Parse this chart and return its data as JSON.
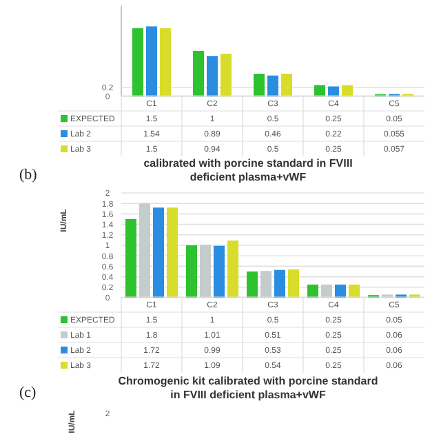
{
  "chart_data": [
    {
      "type": "bar",
      "categories": [
        "C1",
        "C2",
        "C3",
        "C4",
        "C5"
      ],
      "ylim": [
        0,
        2
      ],
      "yticks": [
        0,
        0.2
      ],
      "grid": "y",
      "legend": "bottom",
      "data_labels": true,
      "series": [
        {
          "name": "EXPECTED",
          "color": "#2ec22e",
          "values": [
            1.5,
            1,
            0.5,
            0.25,
            0.05
          ]
        },
        {
          "name": "Lab 2",
          "color": "#2b8de0",
          "values": [
            1.54,
            0.89,
            0.46,
            0.22,
            0.055
          ]
        },
        {
          "name": "Lab 3",
          "color": "#d8dc2a",
          "values": [
            1.5,
            0.94,
            0.5,
            0.25,
            0.057
          ]
        }
      ]
    },
    {
      "type": "bar",
      "title": "calibrated with porcine standard in FVIII deficient plasma+vWF",
      "ylabel": "IU/mL",
      "annotations": [
        "(b)"
      ],
      "categories": [
        "C1",
        "C2",
        "C3",
        "C4",
        "C5"
      ],
      "ylim": [
        0,
        2
      ],
      "yticks": [
        0,
        0.2,
        0.4,
        0.6,
        0.8,
        1,
        1.2,
        1.4,
        1.6,
        1.8,
        2
      ],
      "grid": "y",
      "legend": "bottom",
      "data_labels": true,
      "series": [
        {
          "name": "EXPECTED",
          "color": "#2ec22e",
          "values": [
            1.5,
            1,
            0.5,
            0.25,
            0.05
          ]
        },
        {
          "name": "Lab 1",
          "color": "#c4cccc",
          "values": [
            1.8,
            1.01,
            0.51,
            0.25,
            0.06
          ]
        },
        {
          "name": "Lab 2",
          "color": "#2b8de0",
          "values": [
            1.72,
            0.99,
            0.53,
            0.25,
            0.06
          ]
        },
        {
          "name": "Lab 3",
          "color": "#d8dc2a",
          "values": [
            1.72,
            1.09,
            0.54,
            0.25,
            0.06
          ]
        }
      ]
    },
    {
      "type": "other",
      "title": "Chromogenic kit calibrated with porcine standard in FVIII deficient plasma+vWF",
      "ylabel": "IU/mL",
      "annotations": [
        "(c)",
        "2"
      ]
    }
  ]
}
